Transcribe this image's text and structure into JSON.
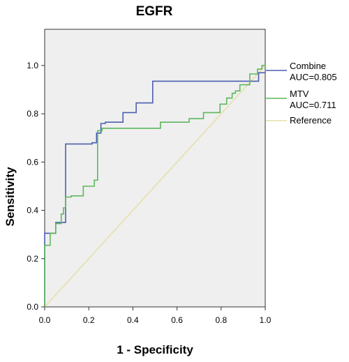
{
  "chart_data": {
    "type": "line",
    "title": "EGFR",
    "xlabel": "1 - Specificity",
    "ylabel": "Sensitivity",
    "xlim": [
      0,
      1
    ],
    "ylim": [
      0,
      1.15
    ],
    "xticks": [
      "0.0",
      "0.2",
      "0.4",
      "0.6",
      "0.8",
      "1.0"
    ],
    "yticks": [
      "0.0",
      "0.2",
      "0.4",
      "0.6",
      "0.8",
      "1.0"
    ],
    "xtick_values": [
      0,
      0.2,
      0.4,
      0.6,
      0.8,
      1.0
    ],
    "ytick_values": [
      0,
      0.2,
      0.4,
      0.6,
      0.8,
      1.0
    ],
    "grid": false,
    "legend_position": "right",
    "series": [
      {
        "name": "Combine",
        "auc_label": "AUC=0.805",
        "color": "#4a5fb0",
        "x": [
          0,
          0,
          0.05,
          0.05,
          0.095,
          0.095,
          0.215,
          0.215,
          0.235,
          0.235,
          0.255,
          0.255,
          0.275,
          0.275,
          0.355,
          0.355,
          0.415,
          0.415,
          0.49,
          0.49,
          0.97,
          0.97,
          1.0
        ],
        "y": [
          0,
          0.305,
          0.305,
          0.35,
          0.35,
          0.675,
          0.675,
          0.68,
          0.68,
          0.72,
          0.72,
          0.76,
          0.76,
          0.765,
          0.765,
          0.805,
          0.805,
          0.845,
          0.845,
          0.935,
          0.935,
          0.97,
          0.97
        ]
      },
      {
        "name": "MTV",
        "auc_label": "AUC=0.711",
        "color": "#5cb85c",
        "x": [
          0,
          0,
          0.025,
          0.025,
          0.05,
          0.05,
          0.075,
          0.075,
          0.085,
          0.085,
          0.095,
          0.095,
          0.12,
          0.12,
          0.175,
          0.175,
          0.225,
          0.225,
          0.24,
          0.24,
          0.26,
          0.26,
          0.525,
          0.525,
          0.655,
          0.655,
          0.72,
          0.72,
          0.795,
          0.795,
          0.825,
          0.825,
          0.85,
          0.85,
          0.865,
          0.865,
          0.885,
          0.885,
          0.93,
          0.93,
          0.965,
          0.965,
          0.985,
          0.985,
          1.0
        ],
        "y": [
          0,
          0.255,
          0.255,
          0.305,
          0.305,
          0.345,
          0.345,
          0.385,
          0.385,
          0.41,
          0.41,
          0.455,
          0.455,
          0.46,
          0.46,
          0.5,
          0.5,
          0.525,
          0.525,
          0.73,
          0.73,
          0.74,
          0.74,
          0.765,
          0.765,
          0.78,
          0.78,
          0.805,
          0.805,
          0.84,
          0.84,
          0.865,
          0.865,
          0.885,
          0.885,
          0.895,
          0.895,
          0.92,
          0.92,
          0.965,
          0.965,
          0.985,
          0.985,
          1.0,
          1.0
        ]
      },
      {
        "name": "Reference",
        "auc_label": "",
        "color": "#e6dfaa",
        "x": [
          0,
          1
        ],
        "y": [
          0,
          1
        ]
      }
    ]
  },
  "colors": {
    "plot_background": "#efefef",
    "axis": "#333333"
  }
}
